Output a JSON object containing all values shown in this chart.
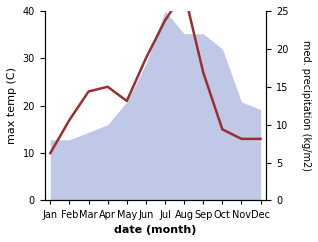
{
  "months": [
    "Jan",
    "Feb",
    "Mar",
    "Apr",
    "May",
    "Jun",
    "Jul",
    "Aug",
    "Sep",
    "Oct",
    "Nov",
    "Dec"
  ],
  "temperature": [
    10,
    17,
    23,
    24,
    21,
    30,
    38,
    44,
    27,
    15,
    13,
    13
  ],
  "precipitation": [
    8,
    8,
    9,
    10,
    13,
    18,
    25,
    22,
    22,
    20,
    13,
    12
  ],
  "temp_color": "#9b2f2f",
  "precip_fill_color": "#c0c8e8",
  "temp_ylim": [
    0,
    40
  ],
  "precip_ylim": [
    0,
    25
  ],
  "left_yticks": [
    0,
    10,
    20,
    30,
    40
  ],
  "right_yticks": [
    0,
    5,
    10,
    15,
    20,
    25
  ],
  "ylabel_left": "max temp (C)",
  "ylabel_right": "med. precipitation (kg/m2)",
  "xlabel": "date (month)",
  "label_fontsize": 8,
  "tick_fontsize": 7,
  "line_width": 1.8
}
